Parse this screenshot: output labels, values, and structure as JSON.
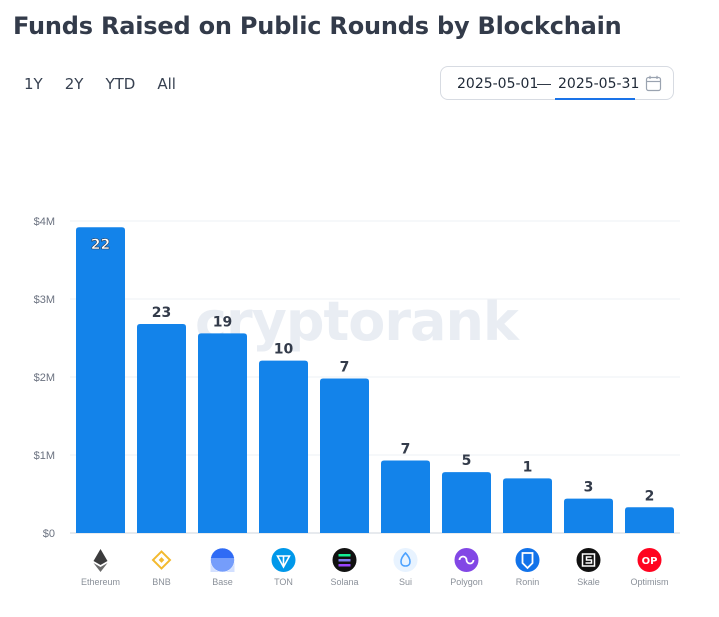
{
  "header": {
    "title": "Funds Raised on Public Rounds by Blockchain"
  },
  "ranges": [
    "1Y",
    "2Y",
    "YTD",
    "All"
  ],
  "date_range": {
    "from": "2025-05-01",
    "separator": "—",
    "to": "2025-05-31"
  },
  "watermark": "cryptorank",
  "chart_data": {
    "type": "bar",
    "title": "Funds Raised on Public Rounds by Blockchain",
    "xlabel": "",
    "ylabel": "",
    "ylim": [
      0,
      4000000
    ],
    "yticks": [
      {
        "value": 0,
        "label": "$0"
      },
      {
        "value": 1000000,
        "label": "$1M"
      },
      {
        "value": 2000000,
        "label": "$2M"
      },
      {
        "value": 3000000,
        "label": "$3M"
      },
      {
        "value": 4000000,
        "label": "$4M"
      }
    ],
    "categories": [
      "Ethereum",
      "BNB",
      "Base",
      "TON",
      "Solana",
      "Sui",
      "Polygon",
      "Ronin",
      "Skale",
      "Optimism"
    ],
    "values": [
      3920000,
      2680000,
      2560000,
      2210000,
      1980000,
      930000,
      780000,
      700000,
      440000,
      330000
    ],
    "labels": [
      "22",
      "23",
      "19",
      "10",
      "7",
      "7",
      "5",
      "1",
      "3",
      "2"
    ],
    "grid": true,
    "bar_color": "#1383ea",
    "icons": [
      {
        "name": "ethereum-icon",
        "color": "#3c3c3d"
      },
      {
        "name": "bnb-icon",
        "color": "#f3ba2f"
      },
      {
        "name": "base-icon",
        "color": "#1652f0"
      },
      {
        "name": "ton-icon",
        "color": "#0098ea"
      },
      {
        "name": "solana-icon",
        "color": "#111111"
      },
      {
        "name": "sui-icon",
        "color": "#4da2ff"
      },
      {
        "name": "polygon-icon",
        "color": "#8247e5"
      },
      {
        "name": "ronin-icon",
        "color": "#1273ea"
      },
      {
        "name": "skale-icon",
        "color": "#111111"
      },
      {
        "name": "optimism-icon",
        "color": "#ff0420"
      }
    ]
  }
}
